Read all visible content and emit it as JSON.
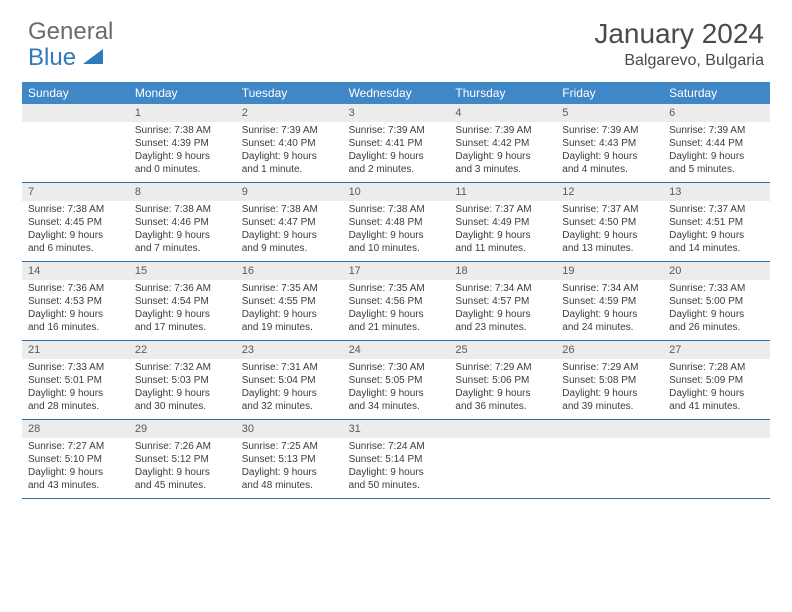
{
  "logo": {
    "text1": "General",
    "text2": "Blue"
  },
  "title": "January 2024",
  "location": "Balgarevo, Bulgaria",
  "colors": {
    "header_bg": "#3f87c6",
    "header_text": "#ffffff",
    "daynum_bg": "#ececec",
    "rule": "#2f6fa8",
    "body_text": "#3c3c3c",
    "title_text": "#4a4a4a",
    "logo_gray": "#6b6b6b",
    "logo_blue": "#2f7abf"
  },
  "dow": [
    "Sunday",
    "Monday",
    "Tuesday",
    "Wednesday",
    "Thursday",
    "Friday",
    "Saturday"
  ],
  "weeks": [
    [
      null,
      {
        "n": "1",
        "sr": "Sunrise: 7:38 AM",
        "ss": "Sunset: 4:39 PM",
        "d1": "Daylight: 9 hours",
        "d2": "and 0 minutes."
      },
      {
        "n": "2",
        "sr": "Sunrise: 7:39 AM",
        "ss": "Sunset: 4:40 PM",
        "d1": "Daylight: 9 hours",
        "d2": "and 1 minute."
      },
      {
        "n": "3",
        "sr": "Sunrise: 7:39 AM",
        "ss": "Sunset: 4:41 PM",
        "d1": "Daylight: 9 hours",
        "d2": "and 2 minutes."
      },
      {
        "n": "4",
        "sr": "Sunrise: 7:39 AM",
        "ss": "Sunset: 4:42 PM",
        "d1": "Daylight: 9 hours",
        "d2": "and 3 minutes."
      },
      {
        "n": "5",
        "sr": "Sunrise: 7:39 AM",
        "ss": "Sunset: 4:43 PM",
        "d1": "Daylight: 9 hours",
        "d2": "and 4 minutes."
      },
      {
        "n": "6",
        "sr": "Sunrise: 7:39 AM",
        "ss": "Sunset: 4:44 PM",
        "d1": "Daylight: 9 hours",
        "d2": "and 5 minutes."
      }
    ],
    [
      {
        "n": "7",
        "sr": "Sunrise: 7:38 AM",
        "ss": "Sunset: 4:45 PM",
        "d1": "Daylight: 9 hours",
        "d2": "and 6 minutes."
      },
      {
        "n": "8",
        "sr": "Sunrise: 7:38 AM",
        "ss": "Sunset: 4:46 PM",
        "d1": "Daylight: 9 hours",
        "d2": "and 7 minutes."
      },
      {
        "n": "9",
        "sr": "Sunrise: 7:38 AM",
        "ss": "Sunset: 4:47 PM",
        "d1": "Daylight: 9 hours",
        "d2": "and 9 minutes."
      },
      {
        "n": "10",
        "sr": "Sunrise: 7:38 AM",
        "ss": "Sunset: 4:48 PM",
        "d1": "Daylight: 9 hours",
        "d2": "and 10 minutes."
      },
      {
        "n": "11",
        "sr": "Sunrise: 7:37 AM",
        "ss": "Sunset: 4:49 PM",
        "d1": "Daylight: 9 hours",
        "d2": "and 11 minutes."
      },
      {
        "n": "12",
        "sr": "Sunrise: 7:37 AM",
        "ss": "Sunset: 4:50 PM",
        "d1": "Daylight: 9 hours",
        "d2": "and 13 minutes."
      },
      {
        "n": "13",
        "sr": "Sunrise: 7:37 AM",
        "ss": "Sunset: 4:51 PM",
        "d1": "Daylight: 9 hours",
        "d2": "and 14 minutes."
      }
    ],
    [
      {
        "n": "14",
        "sr": "Sunrise: 7:36 AM",
        "ss": "Sunset: 4:53 PM",
        "d1": "Daylight: 9 hours",
        "d2": "and 16 minutes."
      },
      {
        "n": "15",
        "sr": "Sunrise: 7:36 AM",
        "ss": "Sunset: 4:54 PM",
        "d1": "Daylight: 9 hours",
        "d2": "and 17 minutes."
      },
      {
        "n": "16",
        "sr": "Sunrise: 7:35 AM",
        "ss": "Sunset: 4:55 PM",
        "d1": "Daylight: 9 hours",
        "d2": "and 19 minutes."
      },
      {
        "n": "17",
        "sr": "Sunrise: 7:35 AM",
        "ss": "Sunset: 4:56 PM",
        "d1": "Daylight: 9 hours",
        "d2": "and 21 minutes."
      },
      {
        "n": "18",
        "sr": "Sunrise: 7:34 AM",
        "ss": "Sunset: 4:57 PM",
        "d1": "Daylight: 9 hours",
        "d2": "and 23 minutes."
      },
      {
        "n": "19",
        "sr": "Sunrise: 7:34 AM",
        "ss": "Sunset: 4:59 PM",
        "d1": "Daylight: 9 hours",
        "d2": "and 24 minutes."
      },
      {
        "n": "20",
        "sr": "Sunrise: 7:33 AM",
        "ss": "Sunset: 5:00 PM",
        "d1": "Daylight: 9 hours",
        "d2": "and 26 minutes."
      }
    ],
    [
      {
        "n": "21",
        "sr": "Sunrise: 7:33 AM",
        "ss": "Sunset: 5:01 PM",
        "d1": "Daylight: 9 hours",
        "d2": "and 28 minutes."
      },
      {
        "n": "22",
        "sr": "Sunrise: 7:32 AM",
        "ss": "Sunset: 5:03 PM",
        "d1": "Daylight: 9 hours",
        "d2": "and 30 minutes."
      },
      {
        "n": "23",
        "sr": "Sunrise: 7:31 AM",
        "ss": "Sunset: 5:04 PM",
        "d1": "Daylight: 9 hours",
        "d2": "and 32 minutes."
      },
      {
        "n": "24",
        "sr": "Sunrise: 7:30 AM",
        "ss": "Sunset: 5:05 PM",
        "d1": "Daylight: 9 hours",
        "d2": "and 34 minutes."
      },
      {
        "n": "25",
        "sr": "Sunrise: 7:29 AM",
        "ss": "Sunset: 5:06 PM",
        "d1": "Daylight: 9 hours",
        "d2": "and 36 minutes."
      },
      {
        "n": "26",
        "sr": "Sunrise: 7:29 AM",
        "ss": "Sunset: 5:08 PM",
        "d1": "Daylight: 9 hours",
        "d2": "and 39 minutes."
      },
      {
        "n": "27",
        "sr": "Sunrise: 7:28 AM",
        "ss": "Sunset: 5:09 PM",
        "d1": "Daylight: 9 hours",
        "d2": "and 41 minutes."
      }
    ],
    [
      {
        "n": "28",
        "sr": "Sunrise: 7:27 AM",
        "ss": "Sunset: 5:10 PM",
        "d1": "Daylight: 9 hours",
        "d2": "and 43 minutes."
      },
      {
        "n": "29",
        "sr": "Sunrise: 7:26 AM",
        "ss": "Sunset: 5:12 PM",
        "d1": "Daylight: 9 hours",
        "d2": "and 45 minutes."
      },
      {
        "n": "30",
        "sr": "Sunrise: 7:25 AM",
        "ss": "Sunset: 5:13 PM",
        "d1": "Daylight: 9 hours",
        "d2": "and 48 minutes."
      },
      {
        "n": "31",
        "sr": "Sunrise: 7:24 AM",
        "ss": "Sunset: 5:14 PM",
        "d1": "Daylight: 9 hours",
        "d2": "and 50 minutes."
      },
      null,
      null,
      null
    ]
  ]
}
